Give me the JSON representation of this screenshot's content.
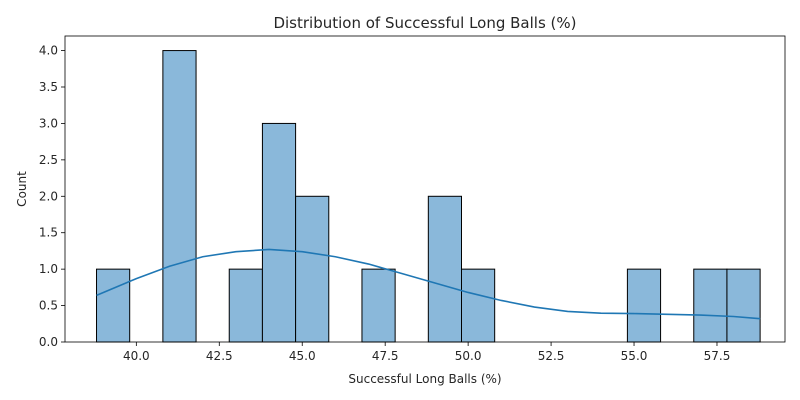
{
  "chart_data": {
    "type": "bar",
    "subtype": "histogram-with-kde",
    "title": "Distribution of Successful Long Balls (%)",
    "xlabel": "Successful Long Balls (%)",
    "ylabel": "Count",
    "xlim": [
      37.85,
      59.55
    ],
    "ylim": [
      0,
      4.2
    ],
    "xticks": [
      40.0,
      42.5,
      45.0,
      47.5,
      50.0,
      52.5,
      55.0,
      57.5
    ],
    "xtick_labels": [
      "40.0",
      "42.5",
      "45.0",
      "47.5",
      "50.0",
      "52.5",
      "55.0",
      "57.5"
    ],
    "yticks": [
      0,
      0.5,
      1,
      1.5,
      2,
      2.5,
      3,
      3.5,
      4
    ],
    "ytick_labels": [
      "0.0",
      "0.5",
      "1.0",
      "1.5",
      "2.0",
      "2.5",
      "3.0",
      "3.5",
      "4.0"
    ],
    "bins": [
      {
        "start": 38.8,
        "end": 39.8,
        "count": 1
      },
      {
        "start": 40.8,
        "end": 41.8,
        "count": 4
      },
      {
        "start": 42.8,
        "end": 43.8,
        "count": 1
      },
      {
        "start": 43.8,
        "end": 44.8,
        "count": 3
      },
      {
        "start": 44.8,
        "end": 45.8,
        "count": 2
      },
      {
        "start": 46.8,
        "end": 47.8,
        "count": 1
      },
      {
        "start": 48.8,
        "end": 49.8,
        "count": 2
      },
      {
        "start": 49.8,
        "end": 50.8,
        "count": 1
      },
      {
        "start": 54.8,
        "end": 55.8,
        "count": 1
      },
      {
        "start": 56.8,
        "end": 57.8,
        "count": 1
      },
      {
        "start": 57.8,
        "end": 58.8,
        "count": 1
      }
    ],
    "kde": {
      "x": [
        38.8,
        40.0,
        41.0,
        42.0,
        43.0,
        44.0,
        45.0,
        46.0,
        47.0,
        48.0,
        49.0,
        50.0,
        51.0,
        52.0,
        53.0,
        54.0,
        55.0,
        56.0,
        57.0,
        58.0,
        58.8
      ],
      "y": [
        0.64,
        0.87,
        1.04,
        1.17,
        1.24,
        1.27,
        1.24,
        1.17,
        1.07,
        0.94,
        0.81,
        0.68,
        0.57,
        0.48,
        0.42,
        0.395,
        0.39,
        0.38,
        0.37,
        0.35,
        0.32
      ]
    },
    "grid": false,
    "colors": {
      "bar_fill": "#8ab8da",
      "bar_edge": "#000000",
      "kde_line": "#1f77b4"
    }
  }
}
